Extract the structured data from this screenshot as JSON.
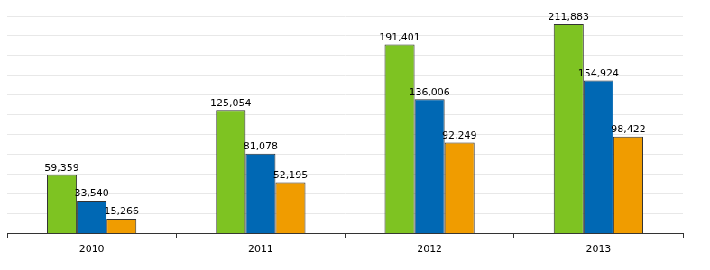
{
  "chart_data": {
    "type": "bar",
    "categories": [
      "2010",
      "2011",
      "2012",
      "2013"
    ],
    "series": [
      {
        "color": "#7ec322",
        "values": [
          59359,
          125054,
          191401,
          211883
        ],
        "value_labels": [
          "59,359",
          "125,054",
          "191,401",
          "211,883"
        ]
      },
      {
        "color": "#0068b4",
        "values": [
          33540,
          81078,
          136006,
          154924
        ],
        "value_labels": [
          "33,540",
          "81,078",
          "136,006",
          "154,924"
        ]
      },
      {
        "color": "#f09c00",
        "values": [
          15266,
          52195,
          92249,
          98422
        ],
        "value_labels": [
          "15,266",
          "52,195",
          "92,249",
          "98,422"
        ]
      }
    ],
    "ylim": [
      0,
      220000
    ],
    "yticks": [
      0,
      20000,
      40000,
      60000,
      80000,
      100000,
      120000,
      140000,
      160000,
      180000,
      200000,
      220000
    ],
    "grid": true,
    "data_labels": true,
    "tick_labels": "x"
  }
}
